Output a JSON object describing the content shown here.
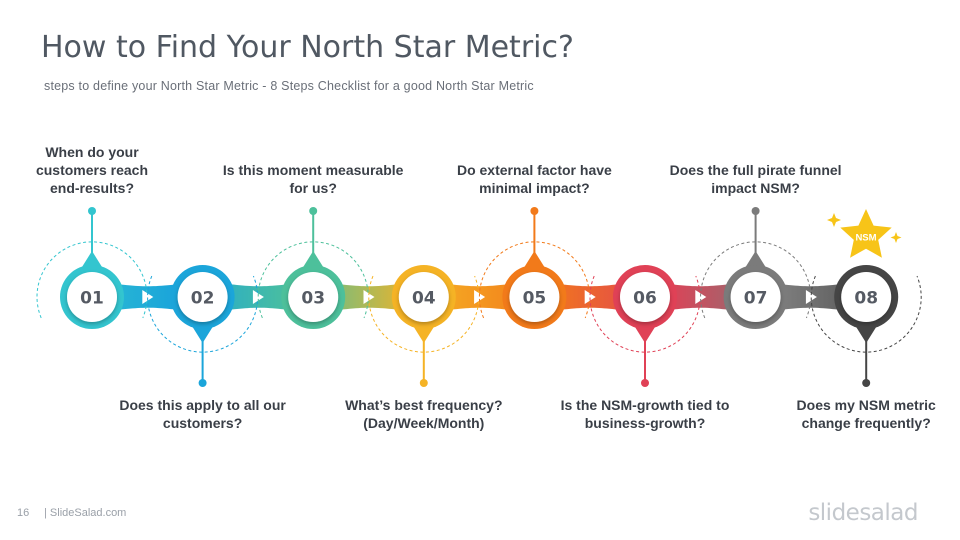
{
  "title": "How to Find Your North Star Metric?",
  "subtitle": "steps to define  your North Star Metric - 8 Steps Checklist  for a good North Star Metric",
  "steps": [
    {
      "number": "01",
      "question": "When do your customers reach end-results?",
      "color": "#33C5CF",
      "position": "top"
    },
    {
      "number": "02",
      "question": "Does this apply to all our customers?",
      "color": "#1BA5DA",
      "position": "bottom"
    },
    {
      "number": "03",
      "question": "Is this moment measurable for us?",
      "color": "#4DC09B",
      "position": "top"
    },
    {
      "number": "04",
      "question": "What’s best frequency? (Day/Week/Month)",
      "color": "#F5B325",
      "position": "bottom"
    },
    {
      "number": "05",
      "question": "Do external factor have minimal impact?",
      "color": "#F27A1A",
      "position": "top"
    },
    {
      "number": "06",
      "question": "Is the NSM-growth tied to business-growth?",
      "color": "#E04156",
      "position": "bottom"
    },
    {
      "number": "07",
      "question": "Does the full pirate funnel impact NSM?",
      "color": "#7B7B7B",
      "position": "top"
    },
    {
      "number": "08",
      "question": "Does my NSM metric change frequently?",
      "color": "#454545",
      "position": "bottom"
    }
  ],
  "badge": {
    "label": "NSM",
    "color": "#F7C418"
  },
  "footer": {
    "page_number": "16",
    "site": "| SlideSalad.com",
    "brand": "slidesalad"
  }
}
